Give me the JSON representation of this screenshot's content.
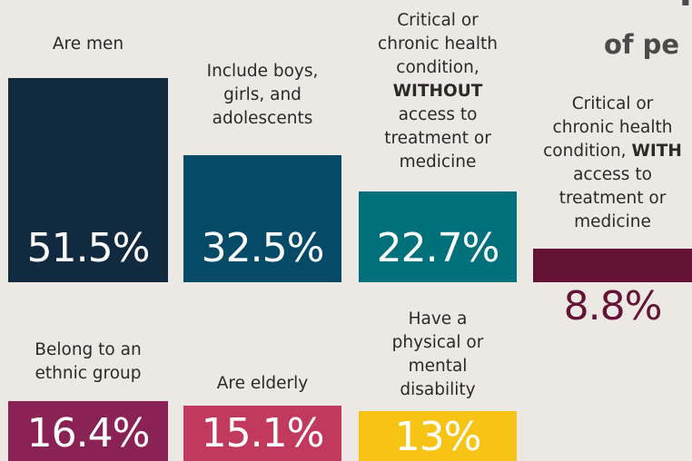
{
  "header": {
    "title_fragment": "l",
    "subtitle_fragment": "of pe"
  },
  "chart_data": {
    "type": "bar",
    "unit": "%",
    "colors": [
      "#112a40",
      "#054a66",
      "#00717a",
      "#641337",
      "#8a2255",
      "#c13a5e",
      "#f7c416"
    ],
    "categories": [
      {
        "label": "Are men",
        "label_parts": [
          [
            "Are men",
            false
          ]
        ],
        "value": 51.5,
        "display": "51.5%",
        "color": "#112a40"
      },
      {
        "label": "Include boys, girls, and adolescents",
        "label_parts": [
          [
            "Include boys,\ngirls, and\nadolescents",
            false
          ]
        ],
        "value": 32.5,
        "display": "32.5%",
        "color": "#054a66"
      },
      {
        "label": "Critical or chronic health condition, WITHOUT access to treatment or medicine",
        "label_parts": [
          [
            "Critical or\nchronic health\ncondition,\n",
            false
          ],
          [
            "WITHOUT",
            true
          ],
          [
            "\naccess to\ntreatment or\nmedicine",
            false
          ]
        ],
        "value": 22.7,
        "display": "22.7%",
        "color": "#00717a"
      },
      {
        "label": "Critical or chronic health condition, WITH access to treatment or medicine",
        "label_parts": [
          [
            "Critical or\nchronic health\ncondition, ",
            false
          ],
          [
            "WITH",
            true
          ],
          [
            "\naccess to\ntreatment or\nmedicine",
            false
          ]
        ],
        "value": 8.8,
        "display": "8.8%",
        "color": "#641337"
      },
      {
        "label": "Belong to an ethnic group",
        "label_parts": [
          [
            "Belong to an\nethnic group",
            false
          ]
        ],
        "value": 16.4,
        "display": "16.4%",
        "color": "#8a2255"
      },
      {
        "label": "Are elderly",
        "label_parts": [
          [
            "Are elderly",
            false
          ]
        ],
        "value": 15.1,
        "display": "15.1%",
        "color": "#c13a5e"
      },
      {
        "label": "Have a physical or mental disability",
        "label_parts": [
          [
            "Have a\nphysical or\nmental\ndisability",
            false
          ]
        ],
        "value": 13,
        "display": "13%",
        "color": "#f7c416"
      }
    ]
  }
}
